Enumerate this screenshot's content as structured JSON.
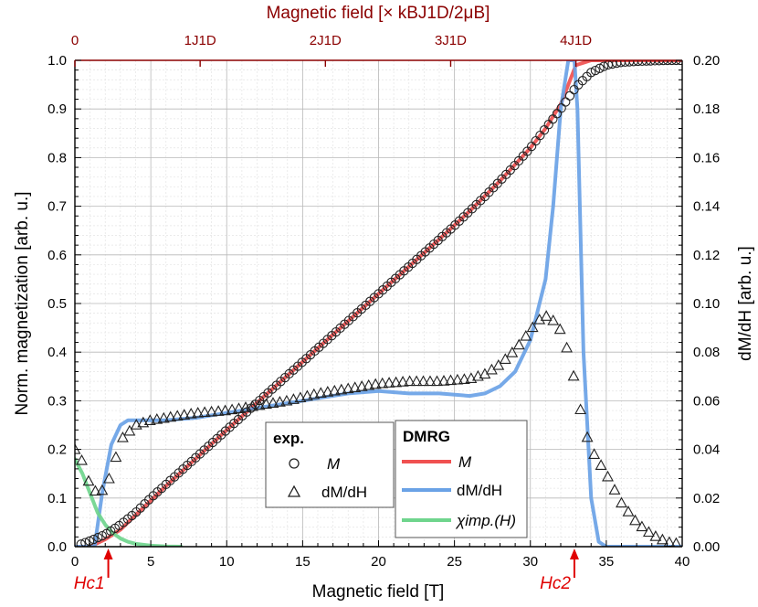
{
  "chart_data": {
    "type": "line",
    "xlabel": "Magnetic field  [T]",
    "ylabel_left": "Norm. magnetization [arb. u.]",
    "ylabel_right": "dM/dH [arb. u.]",
    "top_axis_label": "Magnetic field [× kBJ1D/2μB]",
    "xlim": [
      0,
      40
    ],
    "ylim_left": [
      0,
      1.0
    ],
    "ylim_right": [
      0,
      0.2
    ],
    "x_ticks": [
      0,
      5,
      10,
      15,
      20,
      25,
      30,
      35,
      40
    ],
    "y_left_ticks": [
      0.0,
      0.1,
      0.2,
      0.3,
      0.4,
      0.5,
      0.6,
      0.7,
      0.8,
      0.9,
      1.0
    ],
    "y_right_ticks": [
      0.0,
      0.02,
      0.04,
      0.06,
      0.08,
      0.1,
      0.12,
      0.14,
      0.16,
      0.18,
      0.2
    ],
    "top_ticks": [
      {
        "x": 0,
        "label": "0"
      },
      {
        "x": 8.25,
        "label": "1J1D"
      },
      {
        "x": 16.5,
        "label": "2J1D"
      },
      {
        "x": 24.75,
        "label": "3J1D"
      },
      {
        "x": 33.0,
        "label": "4J1D"
      }
    ],
    "grid": true,
    "critical_fields": [
      {
        "name": "Hc1",
        "label": "Hc1",
        "x": 2.2
      },
      {
        "name": "Hc2",
        "label": "Hc2",
        "x": 32.9
      }
    ],
    "legend_exp": {
      "title": "exp.",
      "items": [
        {
          "marker": "circle",
          "label": "M"
        },
        {
          "marker": "triangle",
          "label": "dM/dH"
        }
      ],
      "placement": "lower-center"
    },
    "legend_dmrg": {
      "title": "DMRG",
      "items": [
        {
          "color": "#f05050",
          "label": "M"
        },
        {
          "color": "#6aa2e6",
          "label": "dM/dH"
        },
        {
          "color": "#6fd58d",
          "label": "χimp.(H)"
        }
      ],
      "placement": "lower-center"
    },
    "series": [
      {
        "name": "M",
        "axis": "left",
        "style": "circle-markers",
        "x": [
          0.4,
          1,
          2,
          3,
          4,
          5,
          6,
          7,
          8,
          9,
          10,
          11,
          12,
          13,
          14,
          15,
          16,
          17,
          18,
          19,
          20,
          21,
          22,
          23,
          24,
          25,
          26,
          27,
          28,
          29,
          30,
          31,
          32,
          33,
          34,
          35,
          36,
          37,
          38,
          39,
          40
        ],
        "y": [
          0.005,
          0.012,
          0.025,
          0.045,
          0.07,
          0.1,
          0.128,
          0.156,
          0.184,
          0.212,
          0.24,
          0.268,
          0.296,
          0.324,
          0.352,
          0.38,
          0.408,
          0.436,
          0.464,
          0.492,
          0.52,
          0.548,
          0.576,
          0.604,
          0.632,
          0.66,
          0.69,
          0.72,
          0.752,
          0.785,
          0.82,
          0.86,
          0.9,
          0.945,
          0.975,
          0.99,
          0.996,
          0.998,
          0.999,
          1.0,
          1.0
        ]
      },
      {
        "name": "dM/dH",
        "axis": "right",
        "style": "triangle-markers",
        "x": [
          0,
          0.5,
          1,
          1.5,
          2,
          2.5,
          3,
          4,
          5,
          6,
          8,
          10,
          12,
          14,
          16,
          18,
          20,
          22,
          24,
          26,
          27,
          28,
          29,
          30,
          30.5,
          31,
          31.5,
          32,
          32.5,
          33,
          33.5,
          34,
          35,
          36,
          37,
          38,
          39,
          40
        ],
        "y": [
          0.04,
          0.035,
          0.025,
          0.022,
          0.024,
          0.032,
          0.044,
          0.05,
          0.052,
          0.053,
          0.055,
          0.056,
          0.058,
          0.06,
          0.063,
          0.065,
          0.067,
          0.068,
          0.068,
          0.069,
          0.071,
          0.075,
          0.081,
          0.089,
          0.093,
          0.095,
          0.093,
          0.089,
          0.08,
          0.066,
          0.05,
          0.04,
          0.03,
          0.018,
          0.01,
          0.005,
          0.002,
          0.001
        ]
      },
      {
        "name": "M",
        "axis": "left",
        "style": "line",
        "color": "#f05050",
        "x": [
          0,
          1,
          2,
          3,
          4,
          5,
          6,
          8,
          10,
          12,
          14,
          16,
          18,
          20,
          22,
          24,
          26,
          28,
          30,
          31,
          32,
          32.5,
          33,
          34,
          36,
          40
        ],
        "y": [
          0,
          0,
          0.015,
          0.035,
          0.065,
          0.095,
          0.125,
          0.182,
          0.24,
          0.296,
          0.352,
          0.408,
          0.464,
          0.52,
          0.576,
          0.632,
          0.69,
          0.752,
          0.82,
          0.86,
          0.91,
          0.95,
          0.99,
          1.0,
          1.0,
          1.0
        ]
      },
      {
        "name": "dM/dH",
        "axis": "right",
        "style": "line",
        "color": "#6aa2e6",
        "x": [
          0,
          1.3,
          1.8,
          2.4,
          3,
          3.5,
          4,
          5,
          6,
          8,
          10,
          12,
          14,
          16,
          18,
          20,
          22,
          24,
          26,
          27,
          28,
          29,
          30,
          31,
          31.5,
          32,
          32.5,
          32.9,
          33.1,
          33.5,
          34,
          34.5,
          35,
          40
        ],
        "y": [
          0,
          0,
          0.022,
          0.042,
          0.05,
          0.052,
          0.052,
          0.052,
          0.052,
          0.053,
          0.055,
          0.057,
          0.059,
          0.061,
          0.063,
          0.064,
          0.063,
          0.063,
          0.062,
          0.063,
          0.066,
          0.072,
          0.085,
          0.11,
          0.14,
          0.18,
          0.2,
          0.2,
          0.18,
          0.08,
          0.02,
          0.002,
          0,
          0
        ]
      },
      {
        "name": "χimp.(H)",
        "axis": "left",
        "style": "line",
        "color": "#6fd58d",
        "x": [
          0,
          0.5,
          1,
          1.5,
          2,
          2.5,
          3,
          3.5,
          4,
          5,
          6,
          7
        ],
        "y": [
          0.18,
          0.15,
          0.11,
          0.07,
          0.045,
          0.028,
          0.017,
          0.01,
          0.006,
          0.002,
          0.0005,
          0
        ]
      }
    ]
  }
}
